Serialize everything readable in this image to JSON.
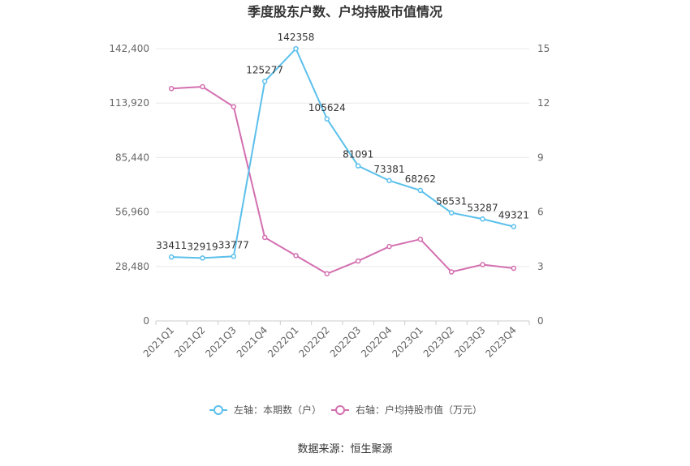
{
  "chart_data": {
    "type": "line",
    "title": "季度股东户数、户均持股市值情况",
    "categories": [
      "2021Q1",
      "2021Q2",
      "2021Q3",
      "2021Q4",
      "2022Q1",
      "2022Q2",
      "2022Q3",
      "2022Q4",
      "2023Q1",
      "2023Q2",
      "2023Q3",
      "2023Q4"
    ],
    "left_axis": {
      "ticks": [
        "0",
        "28,480",
        "56,960",
        "85,440",
        "113,920",
        "142,400"
      ],
      "min": 0,
      "max": 142400
    },
    "right_axis": {
      "ticks": [
        "0",
        "3",
        "6",
        "9",
        "12",
        "15"
      ],
      "min": 0,
      "max": 15
    },
    "series": [
      {
        "name": "左轴：本期数（户）",
        "axis": "left",
        "color": "#5bc0eb",
        "values": [
          33411,
          32919,
          33777,
          125277,
          142358,
          105624,
          81091,
          73381,
          68262,
          56531,
          53287,
          49321
        ],
        "labels": [
          "33411",
          "32919",
          "33777",
          "125277",
          "142358",
          "105624",
          "81091",
          "73381",
          "68262",
          "56531",
          "53287",
          "49321"
        ]
      },
      {
        "name": "右轴：户均持股市值（万元）",
        "axis": "right",
        "color": "#d36fb0",
        "values": [
          12.8,
          12.9,
          11.8,
          4.6,
          3.6,
          2.6,
          3.3,
          4.1,
          4.5,
          2.7,
          3.1,
          2.9
        ]
      }
    ],
    "legend_position": "bottom",
    "grid": true
  },
  "source": "数据来源：恒生聚源"
}
